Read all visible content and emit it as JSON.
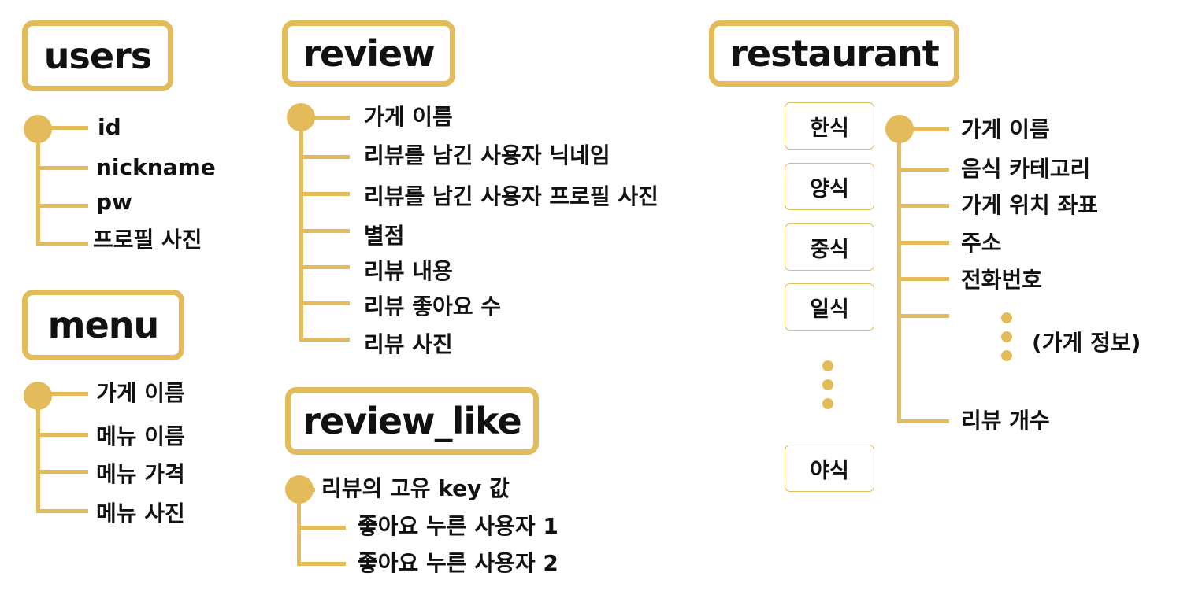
{
  "users": {
    "title": "users",
    "fields": [
      "id",
      "nickname",
      "pw",
      "프로필 사진"
    ]
  },
  "menu": {
    "title": "menu",
    "fields": [
      "가게 이름",
      "메뉴 이름",
      "메뉴 가격",
      "메뉴 사진"
    ]
  },
  "review": {
    "title": "review",
    "fields": [
      "가게 이름",
      "리뷰를 남긴 사용자 닉네임",
      "리뷰를 남긴 사용자 프로필 사진",
      "별점",
      "리뷰 내용",
      "리뷰 좋아요 수",
      "리뷰 사진"
    ]
  },
  "review_like": {
    "title": "review_like",
    "key_label": "리뷰의 고유 key 값",
    "fields": [
      "좋아요 누른 사용자 1",
      "좋아요 누른 사용자 2"
    ]
  },
  "restaurant": {
    "title": "restaurant",
    "categories": [
      "한식",
      "양식",
      "중식",
      "일식",
      "야식"
    ],
    "fields": [
      "가게 이름",
      "음식 카테고리",
      "가게 위치 좌표",
      "주소",
      "전화번호",
      "리뷰 개수"
    ],
    "more_note": "(가게 정보)"
  },
  "colors": {
    "accent": "#e3bb5a",
    "text": "#111111"
  }
}
